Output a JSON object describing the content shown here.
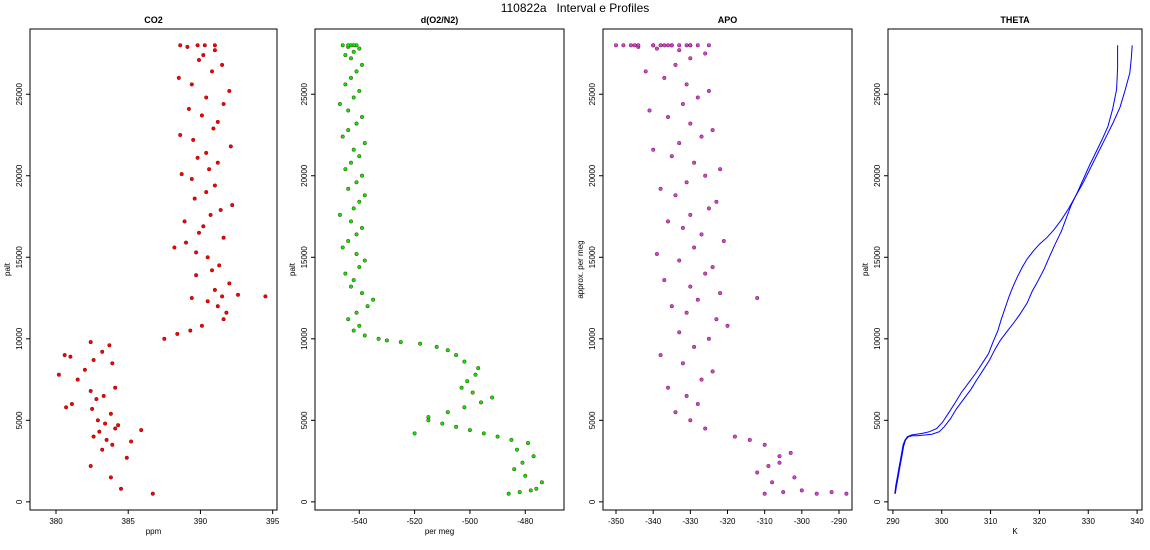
{
  "figure": {
    "title": "110822a   Interval e Profiles"
  },
  "chart_data": [
    {
      "type": "scatter",
      "title": "CO2",
      "xlabel": "ppm",
      "ylabel": "palt",
      "xlim": [
        378.2,
        395.3
      ],
      "ylim": [
        -500,
        29000
      ],
      "xticks": [
        "380",
        "385",
        "390",
        "395"
      ],
      "yticks": [
        "0",
        "5000",
        "10000",
        "15000",
        "20000",
        "25000"
      ],
      "color": "#ff0000",
      "series": [
        {
          "x": [
            386.7,
            384.5,
            383.8,
            382.4,
            384.9,
            383.2,
            383.9,
            383.5,
            382.6,
            383.0,
            384.1,
            383.4,
            382.9,
            384.3,
            385.9,
            385.2,
            383.8,
            382.5,
            381.1,
            380.7,
            382.8,
            383.3,
            382.4,
            384.1,
            381.5,
            380.2,
            382.0,
            383.9,
            382.6,
            381.0,
            380.6,
            383.2,
            383.7,
            382.4,
            387.5,
            388.4,
            389.3,
            390.1,
            391.6,
            391.8,
            391.2,
            390.5,
            389.4,
            391.5,
            392.6,
            394.5,
            391.0,
            392.0,
            389.7,
            390.8,
            391.3,
            390.5,
            389.7,
            388.2,
            389.0,
            391.6,
            389.9,
            390.2,
            388.9,
            390.7,
            391.4,
            392.2,
            389.6,
            390.4,
            391.0,
            389.4,
            388.7,
            390.6,
            391.2,
            389.8,
            390.4,
            392.1,
            389.5,
            388.6,
            390.9,
            391.2,
            390.1,
            389.2,
            391.6,
            390.4,
            392.0,
            389.4,
            388.5,
            390.8,
            391.5,
            389.9,
            390.2,
            391.0,
            389.1,
            388.6,
            390.3,
            389.8,
            391.0
          ],
          "y": [
            500,
            800,
            1500,
            2200,
            2700,
            3200,
            3500,
            3800,
            4000,
            4300,
            4500,
            4800,
            5000,
            4700,
            4400,
            3700,
            5400,
            5700,
            6000,
            5800,
            6300,
            6500,
            6800,
            7000,
            7500,
            7800,
            8100,
            8500,
            8700,
            8900,
            9000,
            9200,
            9600,
            9800,
            10000,
            10300,
            10500,
            10800,
            11200,
            11600,
            12000,
            12300,
            12500,
            12600,
            12700,
            12600,
            13000,
            13400,
            13900,
            14200,
            14500,
            15000,
            15300,
            15600,
            15900,
            16200,
            16500,
            16900,
            17200,
            17600,
            17900,
            18200,
            18600,
            19000,
            19400,
            19800,
            20100,
            20400,
            20800,
            21100,
            21400,
            21800,
            22200,
            22500,
            22900,
            23300,
            23700,
            24100,
            24400,
            24800,
            25200,
            25600,
            26000,
            26400,
            26800,
            27100,
            27400,
            27700,
            27900,
            28000,
            28000,
            28000,
            28000
          ]
        }
      ]
    },
    {
      "type": "scatter",
      "title": "d(O2/N2)",
      "xlabel": "per meg",
      "ylabel": "palt",
      "xlim": [
        -556,
        -466
      ],
      "ylim": [
        -500,
        29000
      ],
      "xticks": [
        "-540",
        "-520",
        "-500",
        "-480"
      ],
      "yticks": [
        "0",
        "5000",
        "10000",
        "15000",
        "20000",
        "25000"
      ],
      "color": "#00ee00",
      "series": [
        {
          "x": [
            -486,
            -482,
            -478,
            -476,
            -474,
            -480,
            -484,
            -481,
            -477,
            -483,
            -479,
            -485,
            -490,
            -495,
            -500,
            -505,
            -510,
            -515,
            -520,
            -515,
            -508,
            -502,
            -496,
            -492,
            -499,
            -503,
            -501,
            -498,
            -497,
            -502,
            -505,
            -508,
            -512,
            -518,
            -525,
            -530,
            -533,
            -538,
            -542,
            -540,
            -544,
            -541,
            -537,
            -535,
            -539,
            -543,
            -542,
            -545,
            -540,
            -538,
            -541,
            -546,
            -544,
            -541,
            -539,
            -543,
            -547,
            -542,
            -540,
            -538,
            -544,
            -541,
            -539,
            -545,
            -543,
            -540,
            -542,
            -538,
            -546,
            -544,
            -541,
            -539,
            -544,
            -547,
            -542,
            -540,
            -545,
            -543,
            -541,
            -539,
            -543,
            -545,
            -542,
            -540,
            -544,
            -546,
            -543,
            -541,
            -544,
            -542
          ],
          "y": [
            500,
            600,
            700,
            800,
            1200,
            1600,
            2000,
            2400,
            2800,
            3200,
            3600,
            3800,
            4000,
            4200,
            4400,
            4600,
            4800,
            5000,
            4200,
            5200,
            5500,
            5800,
            6100,
            6400,
            6700,
            7000,
            7400,
            7800,
            8200,
            8600,
            9000,
            9300,
            9500,
            9700,
            9800,
            9900,
            10000,
            10200,
            10500,
            10800,
            11200,
            11600,
            12000,
            12400,
            12800,
            13200,
            13600,
            14000,
            14400,
            14800,
            15200,
            15600,
            16000,
            16400,
            16800,
            17200,
            17600,
            18000,
            18400,
            18800,
            19200,
            19600,
            20000,
            20400,
            20800,
            21200,
            21600,
            22000,
            22400,
            22800,
            23200,
            23600,
            24000,
            24400,
            24800,
            25200,
            25600,
            26000,
            26400,
            26800,
            27200,
            27400,
            27600,
            27800,
            27900,
            28000,
            28000,
            28000,
            28000,
            28000
          ]
        }
      ]
    },
    {
      "type": "scatter",
      "title": "APO",
      "xlabel": "",
      "ylabel": "approx. per meg",
      "xlim": [
        -353.5,
        -286.5
      ],
      "ylim": [
        -500,
        29000
      ],
      "xticks": [
        "-350",
        "-340",
        "-330",
        "-320",
        "-310",
        "-300",
        "-290"
      ],
      "yticks": [
        "0",
        "5000",
        "10000",
        "15000",
        "20000",
        "25000"
      ],
      "color": "#cc44dd",
      "series": [
        {
          "x": [
            -310,
            -305,
            -300,
            -296,
            -292,
            -288,
            -308,
            -312,
            -306,
            -303,
            -310,
            -314,
            -318,
            -306,
            -302,
            -309,
            -326,
            -330,
            -334,
            -328,
            -331,
            -336,
            -327,
            -324,
            -332,
            -338,
            -329,
            -325,
            -333,
            -320,
            -312,
            -323,
            -331,
            -335,
            -328,
            -322,
            -330,
            -337,
            -326,
            -324,
            -333,
            -339,
            -329,
            -321,
            -327,
            -332,
            -336,
            -330,
            -325,
            -323,
            -334,
            -338,
            -331,
            -326,
            -322,
            -329,
            -335,
            -340,
            -333,
            -327,
            -324,
            -330,
            -336,
            -341,
            -332,
            -328,
            -325,
            -331,
            -337,
            -342,
            -334,
            -330,
            -326,
            -333,
            -339,
            -344,
            -336,
            -331,
            -328,
            -335,
            -340,
            -346,
            -338,
            -333,
            -330,
            -337,
            -344,
            -348,
            -350,
            -345,
            -340,
            -335,
            -330,
            -325
          ],
          "y": [
            500,
            600,
            700,
            500,
            600,
            500,
            1200,
            1800,
            2400,
            3000,
            3500,
            3800,
            4000,
            2800,
            1500,
            2200,
            4500,
            5000,
            5500,
            6000,
            6500,
            7000,
            7500,
            8000,
            8500,
            9000,
            9500,
            10000,
            10400,
            10800,
            12500,
            11200,
            11600,
            12000,
            12400,
            12800,
            13200,
            13600,
            14000,
            14400,
            14800,
            15200,
            15600,
            16000,
            16400,
            16800,
            17200,
            17600,
            18000,
            18400,
            18800,
            19200,
            19600,
            20000,
            20400,
            20800,
            21200,
            21600,
            22000,
            22400,
            22800,
            23200,
            23600,
            24000,
            24400,
            24800,
            25200,
            25600,
            26000,
            26400,
            26800,
            27200,
            27500,
            27700,
            27800,
            27900,
            28000,
            28000,
            28000,
            28000,
            28000,
            28000,
            28000,
            28000,
            28000,
            28000,
            28000,
            28000,
            28000,
            28000,
            28000,
            28000,
            28000,
            28000
          ]
        }
      ]
    },
    {
      "type": "line",
      "title": "THETA",
      "xlabel": "K",
      "ylabel": "palt",
      "xlim": [
        289,
        341
      ],
      "ylim": [
        -500,
        29000
      ],
      "xticks": [
        "290",
        "300",
        "310",
        "320",
        "330",
        "340"
      ],
      "yticks": [
        "0",
        "5000",
        "10000",
        "15000",
        "20000",
        "25000"
      ],
      "color": "#0000ff",
      "series": [
        {
          "x": [
            290.5,
            290.7,
            291.0,
            291.3,
            291.6,
            291.9,
            292.2,
            292.6,
            293.2,
            294.0,
            295.0,
            296.5,
            298.0,
            299.5,
            300.5,
            301.8,
            303.0,
            304.5,
            306.0,
            307.2,
            308.5,
            309.8,
            310.8,
            312.0,
            313.5,
            314.8,
            316.0,
            317.5,
            318.5,
            319.8,
            321.0,
            322.0,
            323.2,
            324.5,
            325.5,
            326.5,
            327.8,
            329.0,
            330.2,
            331.5,
            332.8,
            334.0,
            335.0,
            335.8,
            336.0,
            336.0
          ],
          "y": [
            500,
            900,
            1400,
            1900,
            2400,
            2900,
            3400,
            3800,
            4000,
            4050,
            4050,
            4100,
            4150,
            4300,
            4600,
            5100,
            5700,
            6300,
            6900,
            7500,
            8100,
            8700,
            9300,
            9900,
            10500,
            11000,
            11500,
            12200,
            12900,
            13600,
            14300,
            15000,
            15800,
            16600,
            17400,
            18200,
            19000,
            19800,
            20600,
            21400,
            22200,
            23000,
            24100,
            25300,
            26600,
            28000
          ]
        },
        {
          "x": [
            290.4,
            290.6,
            290.9,
            291.2,
            291.5,
            291.8,
            292.1,
            292.5,
            293.0,
            293.8,
            294.8,
            296.0,
            297.5,
            299.0,
            300.2,
            301.5,
            302.8,
            304.0,
            305.5,
            307.0,
            308.3,
            309.6,
            310.5,
            311.5,
            312.2,
            313.0,
            313.8,
            314.6,
            315.5,
            316.5,
            317.5,
            318.8,
            320.0,
            321.5,
            323.0,
            324.5,
            326.0,
            327.5,
            329.0,
            330.5,
            332.0,
            333.5,
            335.0,
            336.5,
            337.5,
            338.5,
            338.8,
            339.0
          ],
          "y": [
            500,
            1000,
            1500,
            2000,
            2500,
            3000,
            3500,
            3800,
            4000,
            4100,
            4150,
            4200,
            4300,
            4500,
            4900,
            5500,
            6100,
            6700,
            7300,
            7900,
            8500,
            9100,
            9800,
            10500,
            11200,
            11900,
            12600,
            13200,
            13800,
            14400,
            14900,
            15400,
            15800,
            16200,
            16700,
            17300,
            18000,
            18800,
            19600,
            20500,
            21400,
            22300,
            23200,
            24200,
            25200,
            26300,
            27200,
            28000
          ]
        }
      ]
    }
  ]
}
